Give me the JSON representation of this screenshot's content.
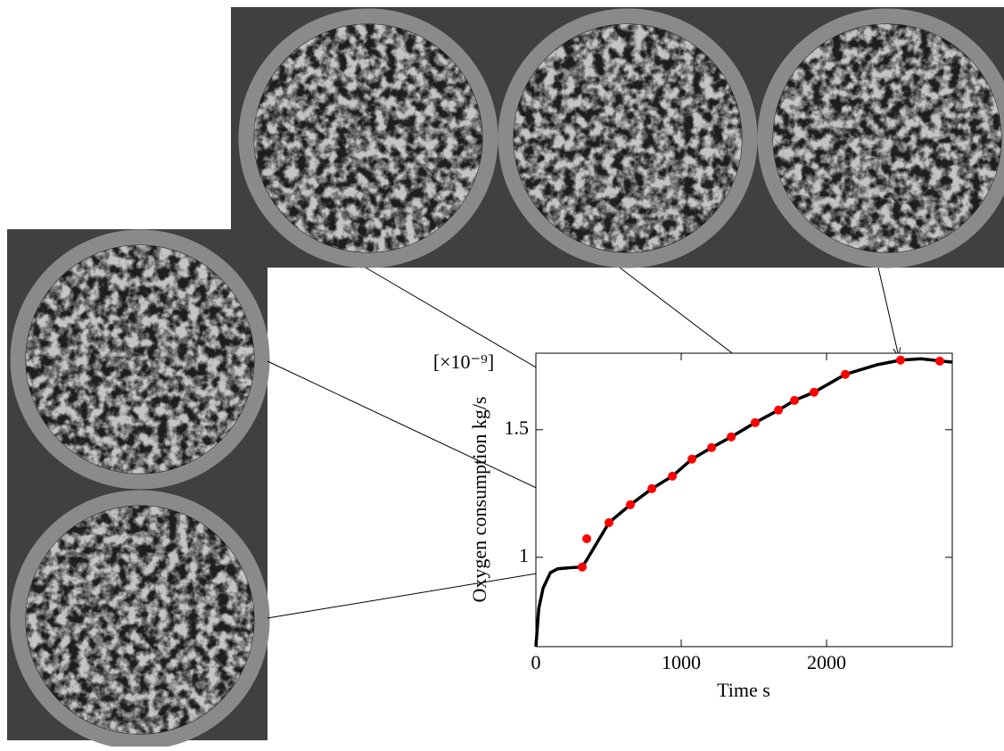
{
  "chart_data": {
    "type": "line",
    "xlabel": "Time s",
    "ylabel": "Oxygen consumption kg/s",
    "y_multiplier": "[×10⁻⁹]",
    "xlim": [
      0,
      2865
    ],
    "ylim": [
      0.65,
      1.8
    ],
    "xticks": [
      0,
      1000,
      2000
    ],
    "yticks": [
      1,
      1.5
    ],
    "series": [
      {
        "color": "#000000",
        "x": [
          0,
          20,
          50,
          100,
          150,
          250,
          319,
          350,
          503,
          650,
          798,
          939,
          1074,
          1209,
          1344,
          1509,
          1669,
          1779,
          1914,
          2129,
          2350,
          2509,
          2650,
          2779,
          2865
        ],
        "values": [
          0.65,
          0.8,
          0.88,
          0.94,
          0.955,
          0.96,
          0.962,
          0.99,
          1.136,
          1.206,
          1.269,
          1.318,
          1.385,
          1.43,
          1.472,
          1.528,
          1.577,
          1.615,
          1.647,
          1.717,
          1.755,
          1.773,
          1.778,
          1.77,
          1.765
        ]
      },
      {
        "color": "#ff0000",
        "markers_only": true,
        "x": [
          319,
          350,
          503,
          650,
          798,
          939,
          1074,
          1209,
          1344,
          1509,
          1669,
          1779,
          1914,
          2129,
          2509,
          2779
        ],
        "values": [
          0.962,
          1.073,
          1.136,
          1.206,
          1.269,
          1.318,
          1.385,
          1.43,
          1.472,
          1.528,
          1.577,
          1.615,
          1.647,
          1.717,
          1.773,
          1.769
        ]
      }
    ]
  }
}
